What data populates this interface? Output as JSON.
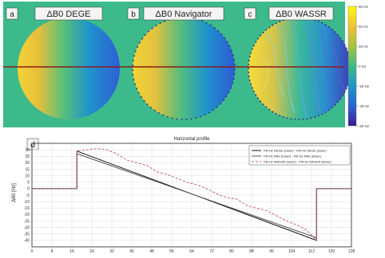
{
  "panels": [
    {
      "letter": "a",
      "title": "ΔB0 DEGE",
      "style": "smooth"
    },
    {
      "letter": "b",
      "title": "ΔB0 Navigator",
      "style": "smooth"
    },
    {
      "letter": "c",
      "title": "ΔB0 WASSR",
      "style": "noisy"
    }
  ],
  "colorbar": {
    "ticks": [
      60,
      40,
      20,
      0,
      -20,
      -40,
      -60
    ],
    "tick_labels": [
      "60 Hz",
      "40 Hz",
      "20 Hz",
      "0 Hz",
      "-20 Hz",
      "-40 Hz",
      "-60 Hz"
    ],
    "colors": [
      "#f9fb0e",
      "#f0c135",
      "#a8c440",
      "#3dba85",
      "#1f96c9",
      "#2a63d6",
      "#3b1d90"
    ]
  },
  "colors": {
    "background": "#3cba8c",
    "profile_line": "#8b1a1a"
  },
  "profile_panel": {
    "letter": "d"
  },
  "chart_data": {
    "type": "line",
    "title": "Horizontal profile",
    "xlabel": "",
    "ylabel": "ΔB0 [Hz]",
    "xlim": [
      0,
      128
    ],
    "ylim": [
      -45,
      35
    ],
    "x_ticks": [
      0,
      8,
      16,
      24,
      32,
      40,
      48,
      56,
      64,
      72,
      80,
      88,
      96,
      104,
      112,
      120,
      128
    ],
    "y_ticks": [
      30,
      25,
      20,
      15,
      10,
      5,
      0,
      -5,
      -10,
      -15,
      -20,
      -25,
      -30,
      -35,
      -40
    ],
    "grid": true,
    "legend_position": "top-right",
    "series": [
      {
        "name": "FM Hz DEGE (lower) - FM Hz DEGE (lower)",
        "color": "#111111",
        "dash": "",
        "x": [
          0,
          18,
          18,
          114,
          114,
          128
        ],
        "y": [
          0,
          0,
          29,
          -40,
          0,
          0
        ]
      },
      {
        "name": "FM Hz NAV (lower) - FM Hz NAV (lower)",
        "color": "#555555",
        "dash": "",
        "x": [
          0,
          18,
          18,
          114,
          114,
          128
        ],
        "y": [
          0,
          0,
          27,
          -38,
          0,
          0
        ]
      },
      {
        "name": "FM Hz WASSR (lower) - FM Hz WASSR (lower)",
        "color": "#c4606a",
        "dash": "3,2",
        "x": [
          0,
          18,
          18,
          22,
          26,
          30,
          34,
          38,
          42,
          46,
          50,
          54,
          58,
          62,
          66,
          70,
          74,
          78,
          82,
          86,
          90,
          94,
          98,
          102,
          106,
          110,
          114,
          114,
          128
        ],
        "y": [
          0,
          0,
          29,
          30,
          31,
          30,
          27,
          22,
          20,
          18,
          13,
          11,
          8,
          5,
          3,
          0,
          -4,
          -7,
          -8,
          -13,
          -15,
          -17,
          -21,
          -25,
          -28,
          -32,
          -40,
          0,
          0
        ]
      }
    ]
  }
}
